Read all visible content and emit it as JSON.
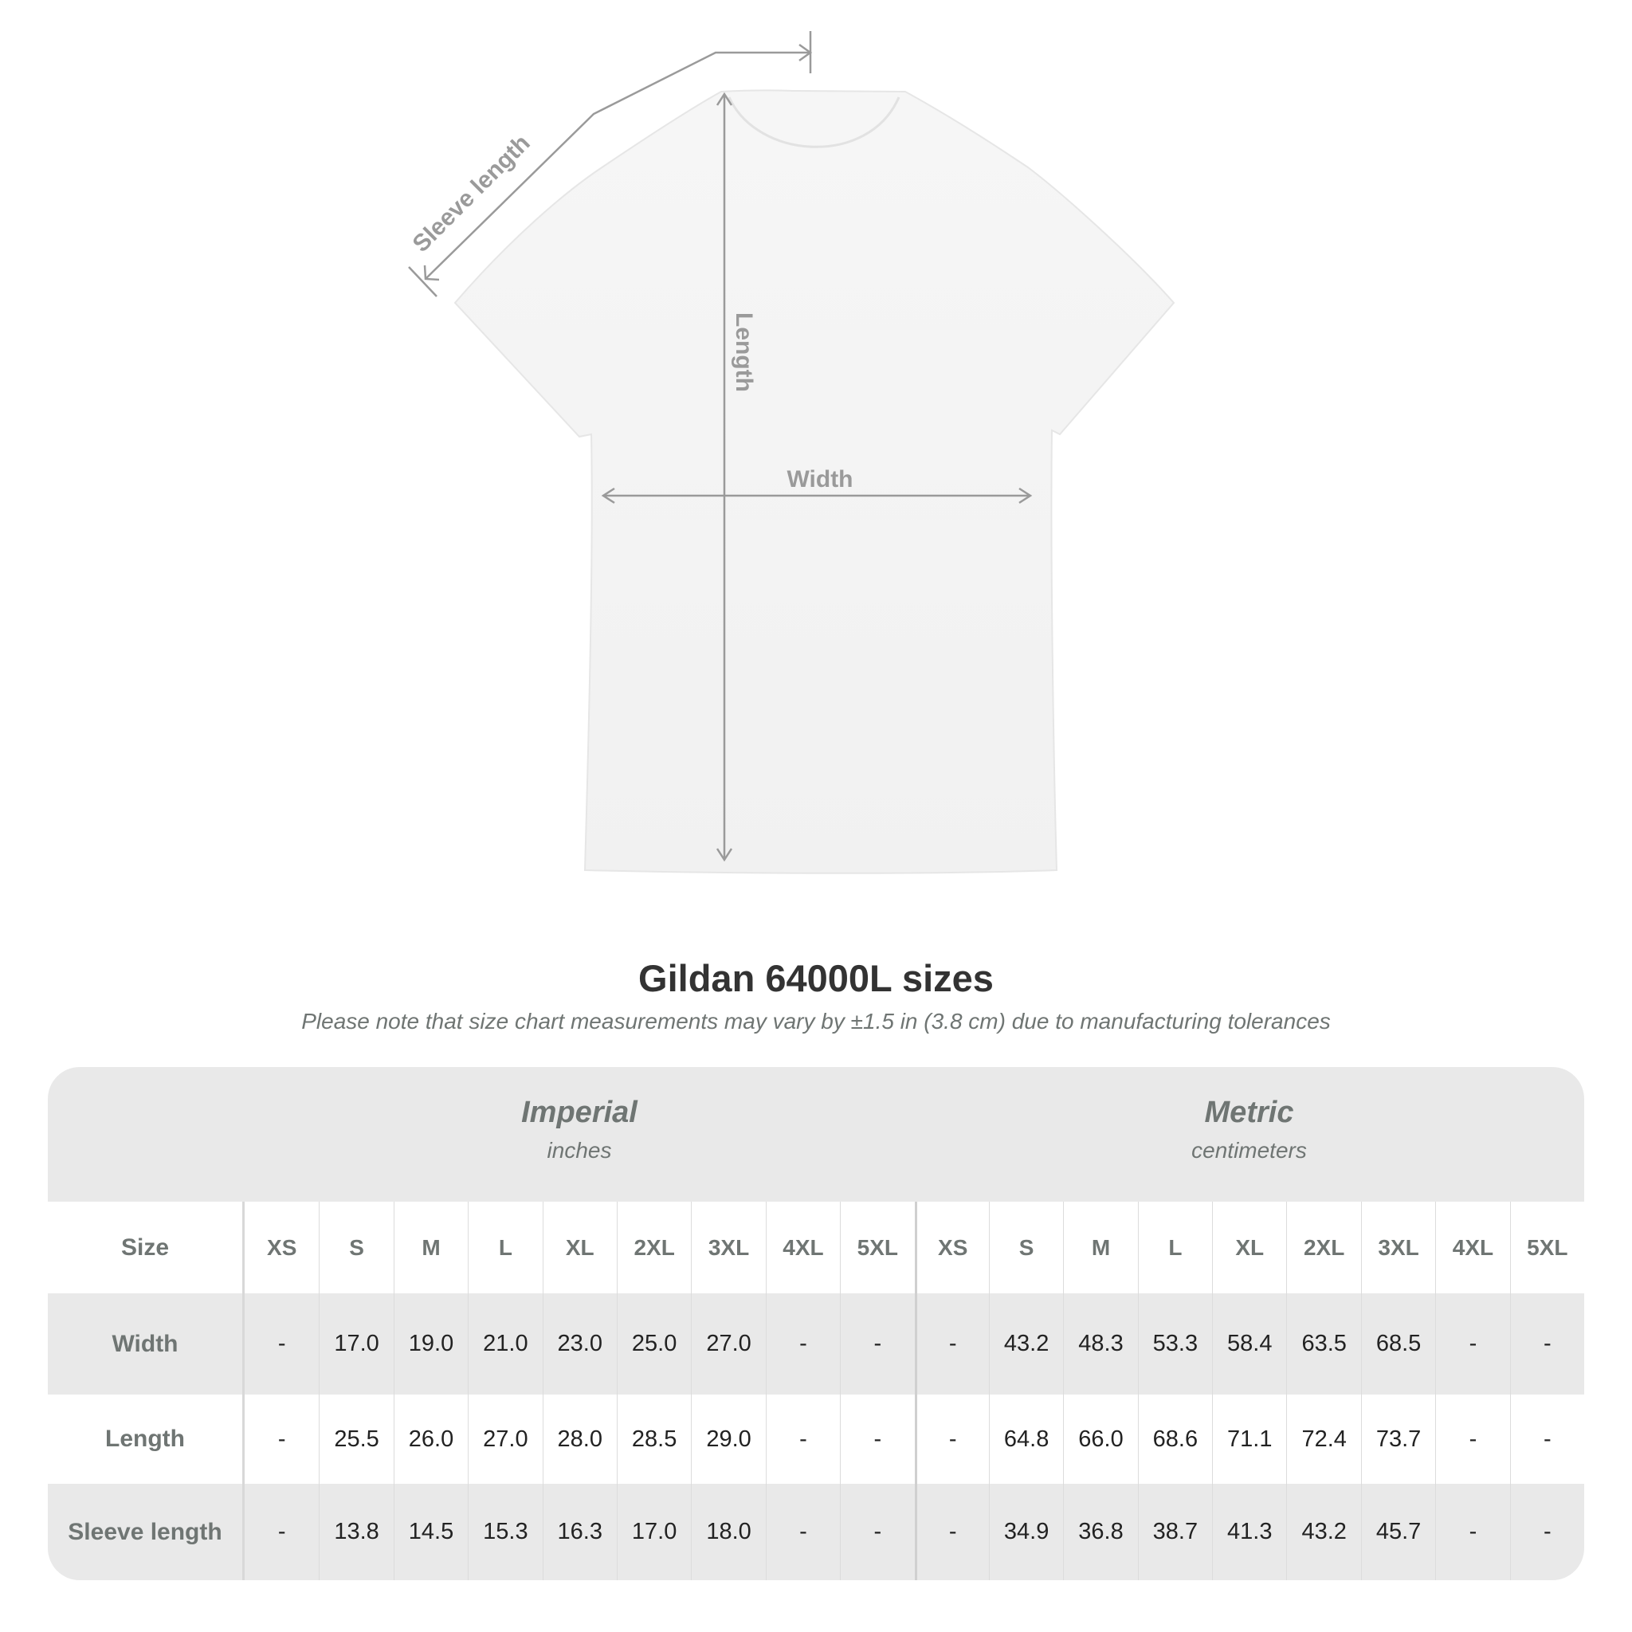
{
  "diagram": {
    "sleeve_label": "Sleeve length",
    "length_label": "Length",
    "width_label": "Width"
  },
  "title": "Gildan 64000L sizes",
  "subtitle": "Please note that size chart measurements may vary by ±1.5 in (3.8 cm) due to manufacturing tolerances",
  "table": {
    "imperial": {
      "title": "Imperial",
      "unit": "inches"
    },
    "metric": {
      "title": "Metric",
      "unit": "centimeters"
    },
    "size_label": "Size",
    "sizes": [
      "XS",
      "S",
      "M",
      "L",
      "XL",
      "2XL",
      "3XL",
      "4XL",
      "5XL"
    ],
    "rows": [
      {
        "label": "Width",
        "imperial": [
          "-",
          "17.0",
          "19.0",
          "21.0",
          "23.0",
          "25.0",
          "27.0",
          "-",
          "-"
        ],
        "metric": [
          "-",
          "43.2",
          "48.3",
          "53.3",
          "58.4",
          "63.5",
          "68.5",
          "-",
          "-"
        ]
      },
      {
        "label": "Length",
        "imperial": [
          "-",
          "25.5",
          "26.0",
          "27.0",
          "28.0",
          "28.5",
          "29.0",
          "-",
          "-"
        ],
        "metric": [
          "-",
          "64.8",
          "66.0",
          "68.6",
          "71.1",
          "72.4",
          "73.7",
          "-",
          "-"
        ]
      },
      {
        "label": "Sleeve length",
        "imperial": [
          "-",
          "13.8",
          "14.5",
          "15.3",
          "16.3",
          "17.0",
          "18.0",
          "-",
          "-"
        ],
        "metric": [
          "-",
          "34.9",
          "36.8",
          "38.7",
          "41.3",
          "43.2",
          "45.7",
          "-",
          "-"
        ]
      }
    ]
  },
  "colors": {
    "header_band": "#e9e9e9",
    "label_text": "#6f7573",
    "value_text": "#222222",
    "measure_line": "#9a9a9a"
  }
}
